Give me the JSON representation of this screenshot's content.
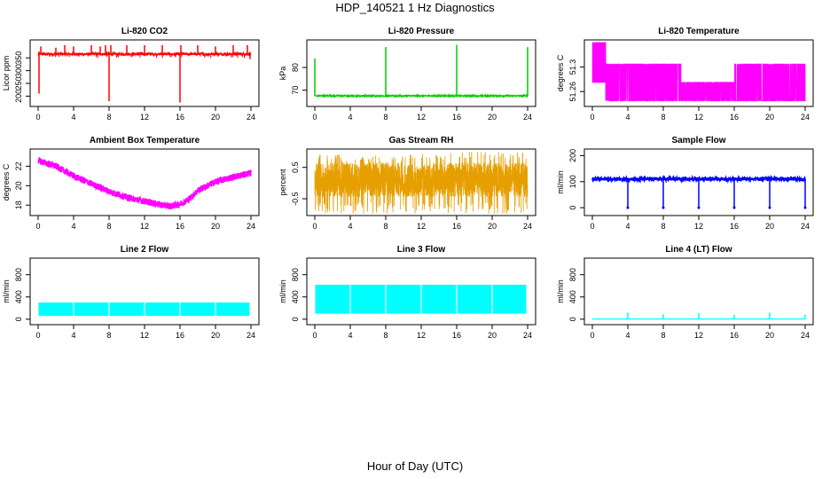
{
  "title": "HDP_140521  1 Hz Diagnostics",
  "xlabel": "Hour of Day (UTC)",
  "chart_data": [
    {
      "type": "line",
      "title": "Li-820 CO2",
      "ylabel": "Licor ppm",
      "color": "#ff0000",
      "xlim": [
        0,
        24
      ],
      "ylim": [
        170,
        410
      ],
      "yticks": [
        200,
        250,
        300,
        350
      ],
      "xticks": [
        0,
        4,
        8,
        12,
        16,
        20,
        24
      ],
      "baseline": 365,
      "noise": 5,
      "spikes": [
        {
          "x": 0.1,
          "y": 210
        },
        {
          "x": 0.3,
          "y": 395
        },
        {
          "x": 2.0,
          "y": 390
        },
        {
          "x": 3.0,
          "y": 400
        },
        {
          "x": 4.0,
          "y": 395
        },
        {
          "x": 6.0,
          "y": 400
        },
        {
          "x": 7.0,
          "y": 395
        },
        {
          "x": 7.6,
          "y": 400
        },
        {
          "x": 8.0,
          "y": 180
        },
        {
          "x": 8.2,
          "y": 400
        },
        {
          "x": 10.0,
          "y": 400
        },
        {
          "x": 12.0,
          "y": 400
        },
        {
          "x": 14.0,
          "y": 400
        },
        {
          "x": 16.0,
          "y": 175
        },
        {
          "x": 16.1,
          "y": 400
        },
        {
          "x": 18.0,
          "y": 400
        },
        {
          "x": 20.0,
          "y": 395
        },
        {
          "x": 22.0,
          "y": 400
        },
        {
          "x": 23.6,
          "y": 400
        },
        {
          "x": 23.9,
          "y": 345
        }
      ]
    },
    {
      "type": "line",
      "title": "Li-820 Pressure",
      "ylabel": "kPa",
      "color": "#00cc00",
      "xlim": [
        0,
        24
      ],
      "ylim": [
        64,
        91
      ],
      "yticks": [
        70,
        80
      ],
      "xticks": [
        0,
        4,
        8,
        12,
        16,
        20,
        24
      ],
      "baseline": 67.5,
      "noise": 0.3,
      "spikes": [
        {
          "x": 0.0,
          "y": 84
        },
        {
          "x": 8.0,
          "y": 89
        },
        {
          "x": 16.0,
          "y": 90
        },
        {
          "x": 24.0,
          "y": 89
        }
      ]
    },
    {
      "type": "line",
      "title": "Li-820 Temperature",
      "ylabel": "degrees C",
      "color": "#ff00ff",
      "xlim": [
        0,
        24
      ],
      "ylim": [
        51.24,
        51.34
      ],
      "yticks": [
        51.26,
        51.3
      ],
      "xticks": [
        0,
        4,
        8,
        12,
        16,
        20,
        24
      ],
      "levels": [
        51.245,
        51.275,
        51.305,
        51.33
      ],
      "band": [
        {
          "x0": 0.0,
          "x1": 1.5,
          "lo": 51.275,
          "hi": 51.34
        },
        {
          "x0": 1.5,
          "x1": 5.5,
          "lo": 51.245,
          "hi": 51.305
        },
        {
          "x0": 5.5,
          "x1": 10.0,
          "lo": 51.245,
          "hi": 51.305
        },
        {
          "x0": 10.0,
          "x1": 16.0,
          "lo": 51.245,
          "hi": 51.275
        },
        {
          "x0": 16.0,
          "x1": 20.0,
          "lo": 51.245,
          "hi": 51.305
        },
        {
          "x0": 20.0,
          "x1": 24.0,
          "lo": 51.245,
          "hi": 51.305
        }
      ]
    },
    {
      "type": "line",
      "title": "Ambient Box Temperature",
      "ylabel": "degrees C",
      "color": "#ff00ff",
      "xlim": [
        0,
        24
      ],
      "ylim": [
        17.2,
        23.5
      ],
      "yticks": [
        18,
        20,
        22
      ],
      "xticks": [
        0,
        4,
        8,
        12,
        16,
        20,
        24
      ],
      "x": [
        0,
        2,
        4,
        6,
        8,
        10,
        12,
        14,
        15,
        16,
        17,
        18,
        20,
        22,
        24
      ],
      "y": [
        22.6,
        22.0,
        21.0,
        20.2,
        19.4,
        18.8,
        18.4,
        18.0,
        17.9,
        18.1,
        18.6,
        19.5,
        20.4,
        20.9,
        21.3
      ],
      "noise": 0.35
    },
    {
      "type": "line",
      "title": "Gas Stream RH",
      "ylabel": "percent",
      "color": "#e69f00",
      "xlim": [
        0,
        24
      ],
      "ylim": [
        -0.95,
        1.0
      ],
      "yticks": [
        -0.5,
        0.5
      ],
      "xticks": [
        0,
        4,
        8,
        12,
        16,
        20,
        24
      ],
      "center": 0.1,
      "halfwidth": 0.55,
      "tail": 0.9
    },
    {
      "type": "line",
      "title": "Sample Flow",
      "ylabel": "ml/min",
      "color": "#0000ff",
      "xlim": [
        0,
        24
      ],
      "ylim": [
        -20,
        215
      ],
      "yticks": [
        0,
        100,
        200
      ],
      "xticks": [
        0,
        4,
        8,
        12,
        16,
        20,
        24
      ],
      "baseline": 110,
      "noise": 5,
      "dips": [
        4,
        8,
        12,
        16,
        20,
        24
      ]
    },
    {
      "type": "area",
      "title": "Line 2 Flow",
      "ylabel": "ml/min",
      "color": "#00ffff",
      "xlim": [
        0,
        24
      ],
      "ylim": [
        -50,
        1050
      ],
      "yticks": [
        0,
        400,
        800
      ],
      "xticks": [
        0,
        4,
        8,
        12,
        16,
        20,
        24
      ],
      "lo": 60,
      "hi": 300,
      "gaps": [
        4,
        8,
        12,
        16,
        20
      ]
    },
    {
      "type": "area",
      "title": "Line 3 Flow",
      "ylabel": "ml/min",
      "color": "#00ffff",
      "xlim": [
        0,
        24
      ],
      "ylim": [
        -50,
        1050
      ],
      "yticks": [
        0,
        400,
        800
      ],
      "xticks": [
        0,
        4,
        8,
        12,
        16,
        20,
        24
      ],
      "lo": 100,
      "hi": 620,
      "gaps": [
        4,
        8,
        12,
        16,
        20
      ]
    },
    {
      "type": "line",
      "title": "Line 4 (LT) Flow",
      "ylabel": "ml/min",
      "color": "#00ffff",
      "xlim": [
        0,
        24
      ],
      "ylim": [
        -50,
        1050
      ],
      "yticks": [
        0,
        400,
        800
      ],
      "xticks": [
        0,
        4,
        8,
        12,
        16,
        20,
        24
      ],
      "baseline": 5,
      "spikes": [
        {
          "x": 4,
          "y": 120
        },
        {
          "x": 8,
          "y": 90
        },
        {
          "x": 12,
          "y": 110
        },
        {
          "x": 16,
          "y": 80
        },
        {
          "x": 20,
          "y": 120
        },
        {
          "x": 24,
          "y": 85
        }
      ]
    }
  ]
}
